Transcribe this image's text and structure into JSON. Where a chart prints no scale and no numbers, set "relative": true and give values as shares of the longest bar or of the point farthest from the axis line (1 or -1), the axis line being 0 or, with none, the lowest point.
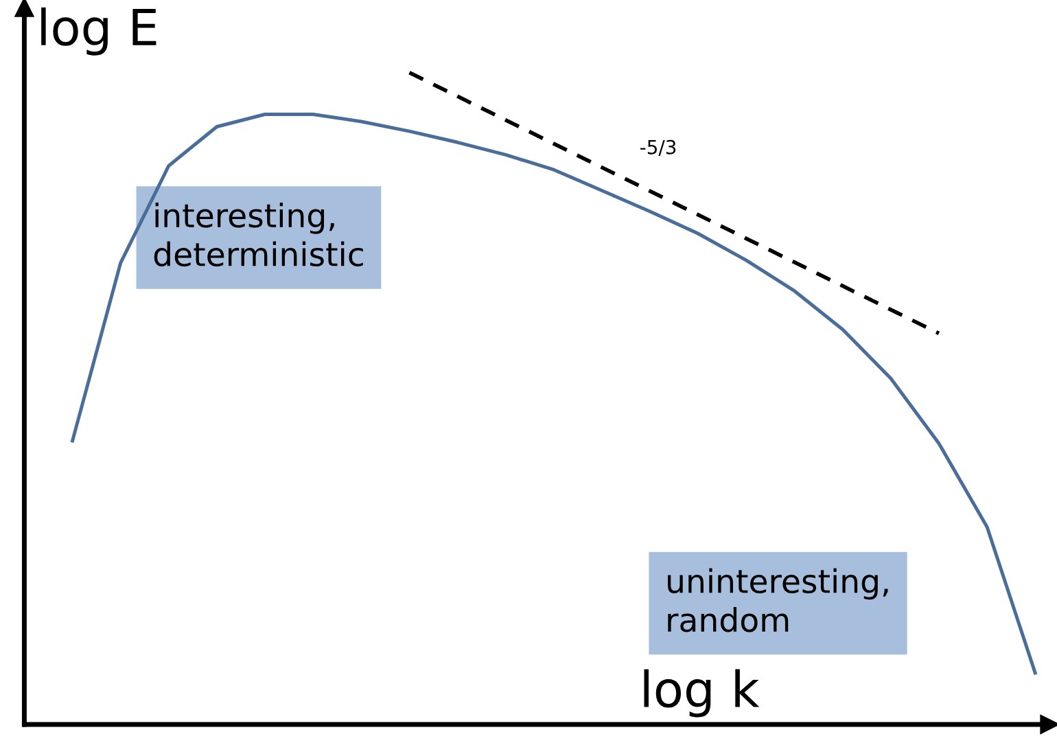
{
  "chart_data": {
    "type": "line",
    "relative": true,
    "xlabel": "log k",
    "ylabel": "log E",
    "categories": [
      null,
      null,
      null,
      null,
      null,
      null,
      null,
      null,
      null,
      null,
      null,
      null,
      null,
      null,
      null,
      null,
      null,
      null,
      null,
      null,
      null
    ],
    "series": [
      {
        "color": "#4a6d9a",
        "values": [
          0.435,
          0.708,
          0.857,
          0.917,
          0.936,
          0.936,
          0.925,
          0.91,
          0.893,
          0.874,
          0.851,
          0.819,
          0.787,
          0.753,
          0.712,
          0.665,
          0.606,
          0.531,
          0.431,
          0.303,
          0.079
        ]
      },
      {
        "type": "line",
        "color": "#000000",
        "line_style": "dashed",
        "values": [
          null,
          null,
          null,
          null,
          null,
          null,
          null,
          1.0,
          null,
          null,
          null,
          null,
          null,
          null,
          null,
          null,
          null,
          null,
          0.6,
          null,
          null
        ]
      }
    ],
    "annotations": [
      "-5/3",
      "interesting,\ndeterministic",
      "uninteresting,\nrandom"
    ],
    "grid": false,
    "legend": false,
    "marker": "none"
  }
}
